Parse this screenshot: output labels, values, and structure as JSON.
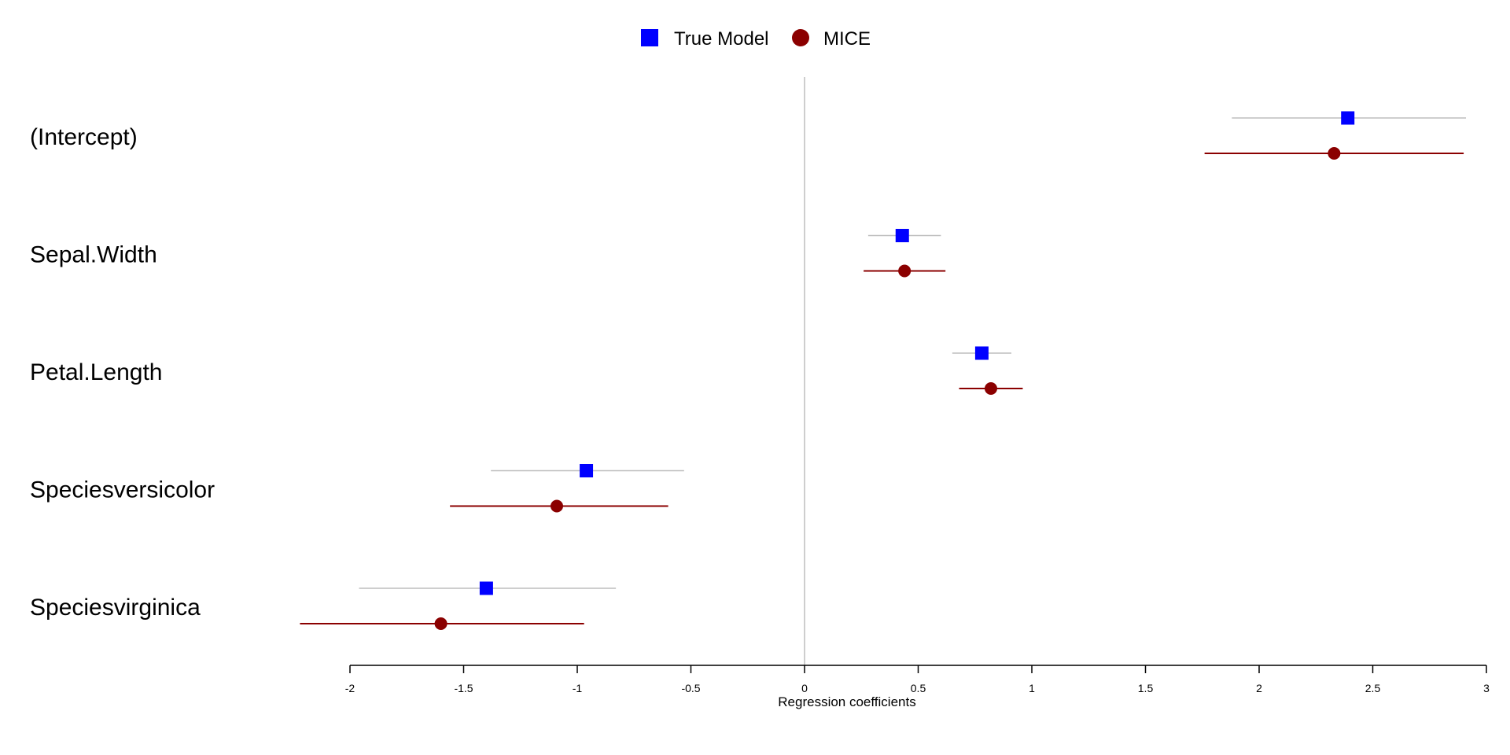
{
  "chart_data": {
    "type": "scatter",
    "subtype": "coefficient-plot",
    "title": "",
    "xlabel": "Regression coefficients",
    "ylabel": "",
    "xlim": [
      -2,
      3
    ],
    "xticks": [
      -2,
      -1.5,
      -1,
      -0.5,
      0,
      0.5,
      1,
      1.5,
      2,
      2.5,
      3
    ],
    "xtick_labels": [
      "-2",
      "-1.5",
      "-1",
      "-0.5",
      "0",
      "0.5",
      "1",
      "1.5",
      "2",
      "2.5",
      "3"
    ],
    "reference_line": 0,
    "grid": false,
    "legend": {
      "position": "top-center"
    },
    "categories": [
      "(Intercept)",
      "Sepal.Width",
      "Petal.Length",
      "Speciesversicolor",
      "Speciesvirginica"
    ],
    "series": [
      {
        "name": "True Model",
        "marker": "square",
        "color": "#0000ff",
        "ci_color": "#bebebe",
        "estimates": [
          2.39,
          0.43,
          0.78,
          -0.96,
          -1.4
        ],
        "ci_lower": [
          1.88,
          0.28,
          0.65,
          -1.38,
          -1.96
        ],
        "ci_upper": [
          2.91,
          0.6,
          0.91,
          -0.53,
          -0.83
        ]
      },
      {
        "name": "MICE",
        "marker": "circle",
        "color": "#8b0000",
        "ci_color": "#8b0000",
        "estimates": [
          2.33,
          0.44,
          0.82,
          -1.09,
          -1.6
        ],
        "ci_lower": [
          1.76,
          0.26,
          0.68,
          -1.56,
          -2.22
        ],
        "ci_upper": [
          2.9,
          0.62,
          0.96,
          -0.6,
          -0.97
        ]
      }
    ]
  }
}
